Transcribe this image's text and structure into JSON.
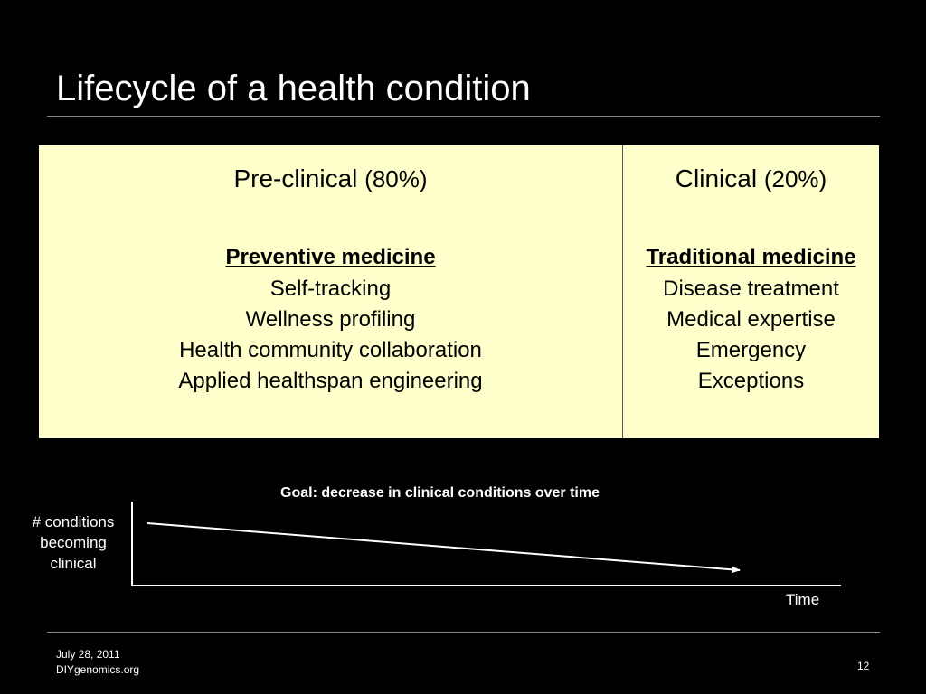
{
  "slide": {
    "title": "Lifecycle of a health condition"
  },
  "table": {
    "preclinical": {
      "header": "Pre-clinical",
      "percent": "(80%)",
      "heading": "Preventive medicine",
      "items": [
        "Self-tracking",
        "Wellness profiling",
        "Health community collaboration",
        "Applied healthspan engineering"
      ]
    },
    "clinical": {
      "header": "Clinical",
      "percent": "(20%)",
      "heading": "Traditional medicine",
      "items": [
        "Disease treatment",
        "Medical expertise",
        "Emergency",
        "Exceptions"
      ]
    },
    "colors": {
      "background": "#ffffcc",
      "text": "#000000"
    }
  },
  "diagram": {
    "goal": "Goal: decrease in clinical conditions over time",
    "y_label": "# conditions becoming clinical",
    "x_label": "Time",
    "trend": "decreasing"
  },
  "footer": {
    "date": "July 28, 2011",
    "site": "DIYgenomics.org",
    "page": "12"
  }
}
